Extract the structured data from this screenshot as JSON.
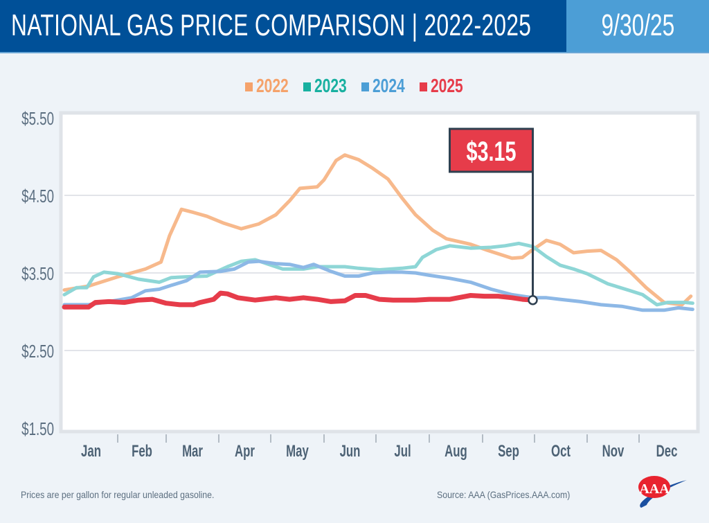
{
  "header": {
    "title": "NATIONAL GAS PRICE COMPARISON | 2022-2025",
    "date": "9/30/25"
  },
  "colors": {
    "header_bg": "#005098",
    "date_bg": "#4c9ed6",
    "2022": "#f7b98c",
    "2023": "#8ed6d6",
    "2024": "#8db8e6",
    "2025": "#e63c4a",
    "legend_2022": "#f5a26b",
    "legend_2023": "#18b0a0",
    "legend_2024": "#4c9ed6",
    "legend_2025": "#e63c4a",
    "callout_border": "#2f4050"
  },
  "footer": {
    "note": "Prices are per gallon for regular unleaded gasoline.",
    "source": "Source: AAA (GasPrices.AAA.com)",
    "logo_text": "AAA"
  },
  "chart_data": {
    "type": "line",
    "title": "NATIONAL GAS PRICE COMPARISON | 2022-2025",
    "x_tick_labels": [
      "Jan",
      "Feb",
      "Mar",
      "Apr",
      "May",
      "Jun",
      "Jul",
      "Aug",
      "Sep",
      "Oct",
      "Nov",
      "Dec"
    ],
    "y_tick_labels": [
      "$5.50",
      "$4.50",
      "$3.50",
      "$2.50",
      "$1.50"
    ],
    "y_ticks": [
      5.5,
      4.5,
      3.5,
      2.5,
      1.5
    ],
    "ylim": [
      1.5,
      5.5
    ],
    "grid": "horizontal",
    "legend_position": "top-center",
    "callout": {
      "series": "2025",
      "date": "09-30",
      "value": 3.15,
      "label": "$3.15"
    },
    "series": [
      {
        "name": "2022",
        "points": [
          [
            "01-01",
            3.28
          ],
          [
            "01-15",
            3.33
          ],
          [
            "02-01",
            3.45
          ],
          [
            "02-17",
            3.55
          ],
          [
            "02-26",
            3.64
          ],
          [
            "03-03",
            3.98
          ],
          [
            "03-10",
            4.32
          ],
          [
            "03-17",
            4.28
          ],
          [
            "03-25",
            4.23
          ],
          [
            "04-04",
            4.14
          ],
          [
            "04-14",
            4.07
          ],
          [
            "04-24",
            4.13
          ],
          [
            "05-04",
            4.25
          ],
          [
            "05-12",
            4.43
          ],
          [
            "05-18",
            4.59
          ],
          [
            "05-28",
            4.61
          ],
          [
            "06-01",
            4.7
          ],
          [
            "06-08",
            4.95
          ],
          [
            "06-13",
            5.02
          ],
          [
            "06-21",
            4.96
          ],
          [
            "06-29",
            4.85
          ],
          [
            "07-08",
            4.71
          ],
          [
            "07-16",
            4.47
          ],
          [
            "07-24",
            4.25
          ],
          [
            "08-03",
            4.05
          ],
          [
            "08-11",
            3.94
          ],
          [
            "08-25",
            3.87
          ],
          [
            "09-04",
            3.79
          ],
          [
            "09-18",
            3.69
          ],
          [
            "09-24",
            3.7
          ],
          [
            "09-30",
            3.8
          ],
          [
            "10-08",
            3.92
          ],
          [
            "10-16",
            3.87
          ],
          [
            "10-24",
            3.76
          ],
          [
            "11-01",
            3.78
          ],
          [
            "11-09",
            3.79
          ],
          [
            "11-18",
            3.67
          ],
          [
            "11-26",
            3.51
          ],
          [
            "12-05",
            3.31
          ],
          [
            "12-15",
            3.12
          ],
          [
            "12-25",
            3.09
          ],
          [
            "12-30",
            3.2
          ]
        ]
      },
      {
        "name": "2023",
        "points": [
          [
            "01-01",
            3.22
          ],
          [
            "01-08",
            3.31
          ],
          [
            "01-14",
            3.31
          ],
          [
            "01-18",
            3.45
          ],
          [
            "01-24",
            3.51
          ],
          [
            "02-01",
            3.49
          ],
          [
            "02-13",
            3.42
          ],
          [
            "02-25",
            3.38
          ],
          [
            "03-04",
            3.44
          ],
          [
            "03-13",
            3.45
          ],
          [
            "03-25",
            3.46
          ],
          [
            "04-06",
            3.58
          ],
          [
            "04-14",
            3.65
          ],
          [
            "04-22",
            3.67
          ],
          [
            "04-30",
            3.61
          ],
          [
            "05-08",
            3.55
          ],
          [
            "05-20",
            3.55
          ],
          [
            "05-28",
            3.58
          ],
          [
            "06-13",
            3.58
          ],
          [
            "06-21",
            3.56
          ],
          [
            "07-03",
            3.54
          ],
          [
            "07-16",
            3.56
          ],
          [
            "07-24",
            3.58
          ],
          [
            "07-28",
            3.7
          ],
          [
            "08-05",
            3.8
          ],
          [
            "08-13",
            3.85
          ],
          [
            "08-25",
            3.82
          ],
          [
            "09-06",
            3.83
          ],
          [
            "09-14",
            3.85
          ],
          [
            "09-22",
            3.88
          ],
          [
            "09-30",
            3.84
          ],
          [
            "10-08",
            3.71
          ],
          [
            "10-16",
            3.6
          ],
          [
            "10-24",
            3.55
          ],
          [
            "11-01",
            3.49
          ],
          [
            "11-13",
            3.36
          ],
          [
            "11-26",
            3.27
          ],
          [
            "12-03",
            3.22
          ],
          [
            "12-11",
            3.09
          ],
          [
            "12-17",
            3.12
          ],
          [
            "12-27",
            3.12
          ],
          [
            "12-31",
            3.11
          ]
        ]
      },
      {
        "name": "2024",
        "points": [
          [
            "01-01",
            3.09
          ],
          [
            "01-15",
            3.09
          ],
          [
            "01-27",
            3.13
          ],
          [
            "02-09",
            3.18
          ],
          [
            "02-17",
            3.27
          ],
          [
            "02-25",
            3.29
          ],
          [
            "03-04",
            3.34
          ],
          [
            "03-13",
            3.4
          ],
          [
            "03-21",
            3.51
          ],
          [
            "04-02",
            3.52
          ],
          [
            "04-10",
            3.55
          ],
          [
            "04-18",
            3.64
          ],
          [
            "04-24",
            3.65
          ],
          [
            "05-04",
            3.62
          ],
          [
            "05-12",
            3.61
          ],
          [
            "05-20",
            3.57
          ],
          [
            "05-26",
            3.61
          ],
          [
            "06-05",
            3.52
          ],
          [
            "06-13",
            3.46
          ],
          [
            "06-21",
            3.46
          ],
          [
            "06-29",
            3.5
          ],
          [
            "07-08",
            3.51
          ],
          [
            "07-16",
            3.51
          ],
          [
            "07-24",
            3.5
          ],
          [
            "08-01",
            3.47
          ],
          [
            "08-13",
            3.43
          ],
          [
            "08-25",
            3.38
          ],
          [
            "09-06",
            3.29
          ],
          [
            "09-18",
            3.22
          ],
          [
            "09-30",
            3.18
          ],
          [
            "10-08",
            3.18
          ],
          [
            "10-16",
            3.16
          ],
          [
            "10-28",
            3.13
          ],
          [
            "11-09",
            3.09
          ],
          [
            "11-21",
            3.07
          ],
          [
            "12-03",
            3.02
          ],
          [
            "12-15",
            3.02
          ],
          [
            "12-23",
            3.05
          ],
          [
            "12-31",
            3.03
          ]
        ]
      },
      {
        "name": "2025",
        "points": [
          [
            "01-01",
            3.06
          ],
          [
            "01-15",
            3.06
          ],
          [
            "01-19",
            3.12
          ],
          [
            "01-27",
            3.13
          ],
          [
            "02-05",
            3.12
          ],
          [
            "02-13",
            3.15
          ],
          [
            "02-21",
            3.16
          ],
          [
            "03-01",
            3.11
          ],
          [
            "03-09",
            3.09
          ],
          [
            "03-17",
            3.09
          ],
          [
            "03-21",
            3.12
          ],
          [
            "03-29",
            3.16
          ],
          [
            "04-02",
            3.24
          ],
          [
            "04-06",
            3.23
          ],
          [
            "04-12",
            3.18
          ],
          [
            "04-22",
            3.15
          ],
          [
            "05-04",
            3.18
          ],
          [
            "05-12",
            3.16
          ],
          [
            "05-20",
            3.18
          ],
          [
            "05-28",
            3.16
          ],
          [
            "06-05",
            3.13
          ],
          [
            "06-13",
            3.14
          ],
          [
            "06-19",
            3.21
          ],
          [
            "06-25",
            3.21
          ],
          [
            "07-03",
            3.16
          ],
          [
            "07-11",
            3.15
          ],
          [
            "07-24",
            3.15
          ],
          [
            "08-01",
            3.16
          ],
          [
            "08-13",
            3.16
          ],
          [
            "08-25",
            3.21
          ],
          [
            "09-02",
            3.2
          ],
          [
            "09-10",
            3.2
          ],
          [
            "09-18",
            3.18
          ],
          [
            "09-24",
            3.16
          ],
          [
            "09-30",
            3.15
          ]
        ]
      }
    ]
  }
}
